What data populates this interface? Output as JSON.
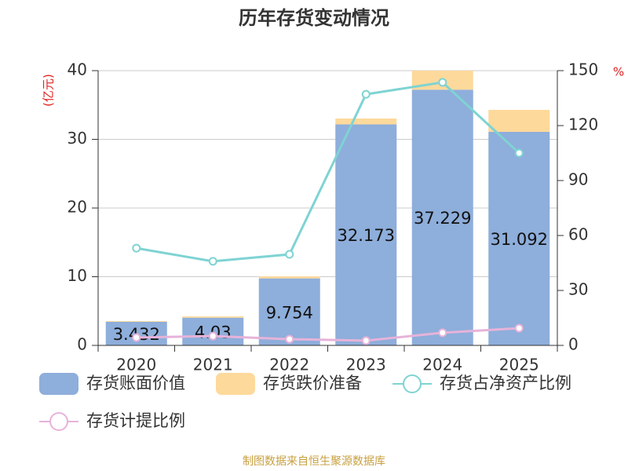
{
  "chart_data": {
    "type": "bar-line",
    "title": "历年存货变动情况",
    "y_label": "(亿元)",
    "y2_label": "%",
    "source": "制图数据来自恒生聚源数据库",
    "categories": [
      "2020",
      "2021",
      "2022",
      "2023",
      "2024",
      "2025"
    ],
    "series": [
      {
        "name": "存货账面价值",
        "type": "bar",
        "color": "#8eaedb",
        "labels": true,
        "values": [
          3.432,
          4.03,
          9.754,
          32.173,
          37.229,
          31.092
        ]
      },
      {
        "name": "存货跌价准备",
        "type": "bar",
        "color": "#fdd99b",
        "values": [
          0.11,
          0.2,
          0.3,
          0.86,
          2.77,
          3.2
        ]
      },
      {
        "name": "存货占净资产比例",
        "type": "line",
        "axis": "y2",
        "color": "#7fd3d3",
        "values": [
          53.1,
          45.9,
          49.7,
          137.1,
          143.6,
          105
        ]
      },
      {
        "name": "存货计提比例",
        "type": "line",
        "axis": "y2",
        "color": "#e6b3d9",
        "values": [
          4.3,
          5.1,
          3.4,
          2.6,
          6.9,
          9.4
        ]
      }
    ],
    "stacked": true,
    "ylim": [
      0,
      40
    ],
    "yticks": [
      0,
      10,
      20,
      30,
      40
    ],
    "y2lim": [
      0,
      150
    ],
    "y2ticks": [
      0,
      30,
      60,
      90,
      120,
      150
    ],
    "grid": true
  }
}
